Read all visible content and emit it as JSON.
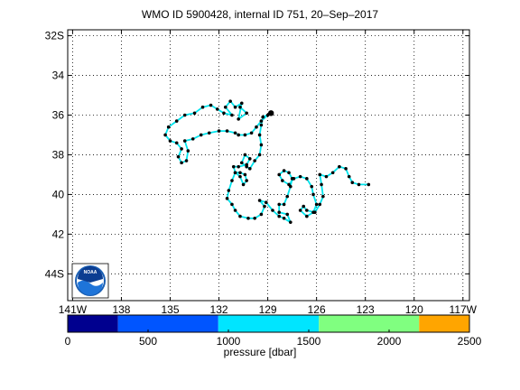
{
  "title": "WMO ID 5900428, internal ID 751, 20–Sep–2017",
  "map": {
    "lat_ticks": [
      {
        "lat": -32,
        "label": "32S"
      },
      {
        "lat": -34,
        "label": "34"
      },
      {
        "lat": -36,
        "label": "36"
      },
      {
        "lat": -38,
        "label": "38"
      },
      {
        "lat": -40,
        "label": "40"
      },
      {
        "lat": -42,
        "label": "42"
      },
      {
        "lat": -44,
        "label": "44S"
      }
    ],
    "lon_ticks": [
      {
        "lon": -141,
        "label": "141W"
      },
      {
        "lon": -138,
        "label": "138"
      },
      {
        "lon": -135,
        "label": "135"
      },
      {
        "lon": -132,
        "label": "132"
      },
      {
        "lon": -129,
        "label": "129"
      },
      {
        "lon": -126,
        "label": "126"
      },
      {
        "lon": -123,
        "label": "123"
      },
      {
        "lon": -120,
        "label": "120"
      },
      {
        "lon": -117,
        "label": "117W"
      }
    ],
    "lon_range": [
      -141.3,
      -116.6
    ],
    "lat_range": [
      -31.7,
      -45.35
    ],
    "grid": "dotted",
    "track_color": "#00e5ee",
    "float_color": "#000000",
    "logo_name": "noaa-logo",
    "logo_text": "NOAA",
    "track": [
      [
        -130.7,
        -35.6
      ],
      [
        -130.3,
        -35.9
      ],
      [
        -130.8,
        -36.2
      ],
      [
        -130.6,
        -35.4
      ],
      [
        -131.0,
        -35.6
      ],
      [
        -131.3,
        -35.3
      ],
      [
        -131.6,
        -35.6
      ],
      [
        -131.2,
        -36.0
      ],
      [
        -131.7,
        -35.9
      ],
      [
        -132.1,
        -35.7
      ],
      [
        -132.5,
        -35.5
      ],
      [
        -133.0,
        -35.6
      ],
      [
        -133.5,
        -35.9
      ],
      [
        -134.1,
        -36.0
      ],
      [
        -134.6,
        -36.3
      ],
      [
        -135.1,
        -36.6
      ],
      [
        -135.3,
        -37.0
      ],
      [
        -135.0,
        -37.3
      ],
      [
        -134.6,
        -37.4
      ],
      [
        -134.3,
        -37.7
      ],
      [
        -134.5,
        -38.1
      ],
      [
        -134.3,
        -38.4
      ],
      [
        -134.0,
        -38.3
      ],
      [
        -133.9,
        -37.8
      ],
      [
        -134.1,
        -37.3
      ],
      [
        -133.6,
        -37.2
      ],
      [
        -133.1,
        -37.0
      ],
      [
        -132.6,
        -36.9
      ],
      [
        -132.0,
        -36.8
      ],
      [
        -131.5,
        -36.8
      ],
      [
        -131.0,
        -36.9
      ],
      [
        -130.8,
        -37.0
      ],
      [
        -130.4,
        -37.0
      ],
      [
        -130.0,
        -36.9
      ],
      [
        -129.7,
        -36.6
      ],
      [
        -129.4,
        -36.3
      ],
      [
        -129.0,
        -36.0
      ],
      [
        -128.8,
        -35.9
      ],
      [
        -129.3,
        -36.1
      ],
      [
        -129.4,
        -36.5
      ],
      [
        -129.5,
        -37.0
      ],
      [
        -129.4,
        -37.5
      ],
      [
        -129.5,
        -38.0
      ],
      [
        -129.8,
        -38.3
      ],
      [
        -130.1,
        -38.7
      ],
      [
        -130.3,
        -38.6
      ],
      [
        -130.6,
        -38.4
      ],
      [
        -130.4,
        -38.0
      ],
      [
        -130.1,
        -38.2
      ],
      [
        -130.3,
        -38.5
      ],
      [
        -130.8,
        -38.6
      ],
      [
        -131.1,
        -38.6
      ],
      [
        -131.0,
        -38.9
      ],
      [
        -130.7,
        -39.1
      ],
      [
        -130.5,
        -39.5
      ],
      [
        -130.3,
        -39.3
      ],
      [
        -130.4,
        -39.0
      ],
      [
        -130.7,
        -38.9
      ],
      [
        -131.0,
        -38.9
      ],
      [
        -131.2,
        -39.3
      ],
      [
        -131.4,
        -39.8
      ],
      [
        -131.5,
        -40.2
      ],
      [
        -131.2,
        -40.5
      ],
      [
        -131.0,
        -40.8
      ],
      [
        -130.7,
        -41.1
      ],
      [
        -130.2,
        -41.2
      ],
      [
        -129.8,
        -41.2
      ],
      [
        -129.4,
        -41.0
      ],
      [
        -129.2,
        -40.6
      ],
      [
        -129.5,
        -40.3
      ],
      [
        -129.1,
        -40.4
      ],
      [
        -128.7,
        -40.8
      ],
      [
        -128.3,
        -41.1
      ],
      [
        -128.0,
        -41.2
      ],
      [
        -127.6,
        -41.4
      ],
      [
        -127.8,
        -41.0
      ],
      [
        -128.3,
        -40.9
      ],
      [
        -128.3,
        -40.5
      ],
      [
        -128.0,
        -40.5
      ],
      [
        -127.8,
        -40.1
      ],
      [
        -127.6,
        -39.6
      ],
      [
        -127.5,
        -39.2
      ],
      [
        -127.7,
        -38.9
      ],
      [
        -128.0,
        -38.8
      ],
      [
        -128.3,
        -39.0
      ],
      [
        -128.1,
        -39.3
      ],
      [
        -127.7,
        -39.5
      ],
      [
        -127.4,
        -39.2
      ],
      [
        -127.0,
        -39.1
      ],
      [
        -126.6,
        -39.2
      ],
      [
        -126.3,
        -39.6
      ],
      [
        -126.2,
        -40.0
      ],
      [
        -126.0,
        -40.5
      ],
      [
        -126.2,
        -40.9
      ],
      [
        -126.6,
        -41.1
      ],
      [
        -127.0,
        -40.8
      ],
      [
        -126.8,
        -40.6
      ],
      [
        -126.6,
        -40.8
      ],
      [
        -126.1,
        -40.9
      ],
      [
        -125.8,
        -40.5
      ],
      [
        -125.6,
        -40.1
      ],
      [
        -125.7,
        -39.5
      ],
      [
        -125.8,
        -39.0
      ],
      [
        -125.4,
        -39.1
      ],
      [
        -125.0,
        -38.9
      ],
      [
        -124.6,
        -38.6
      ],
      [
        -124.2,
        -38.7
      ],
      [
        -124.0,
        -39.1
      ],
      [
        -123.8,
        -39.4
      ],
      [
        -123.4,
        -39.5
      ],
      [
        -122.8,
        -39.5
      ]
    ],
    "float_position": [
      -128.8,
      -35.9
    ]
  },
  "colorbar": {
    "label": "pressure [dbar]",
    "ticks": [
      "0",
      "500",
      "1000",
      "1500",
      "2000",
      "2500"
    ],
    "max": 2500,
    "segments": [
      {
        "from": 0,
        "to": 313,
        "color": "#00008f"
      },
      {
        "from": 313,
        "to": 937,
        "color": "#0055ff"
      },
      {
        "from": 937,
        "to": 1563,
        "color": "#00e5ff"
      },
      {
        "from": 1563,
        "to": 2187,
        "color": "#80ff80"
      },
      {
        "from": 2187,
        "to": 2500,
        "color": "#ffa500"
      }
    ]
  }
}
